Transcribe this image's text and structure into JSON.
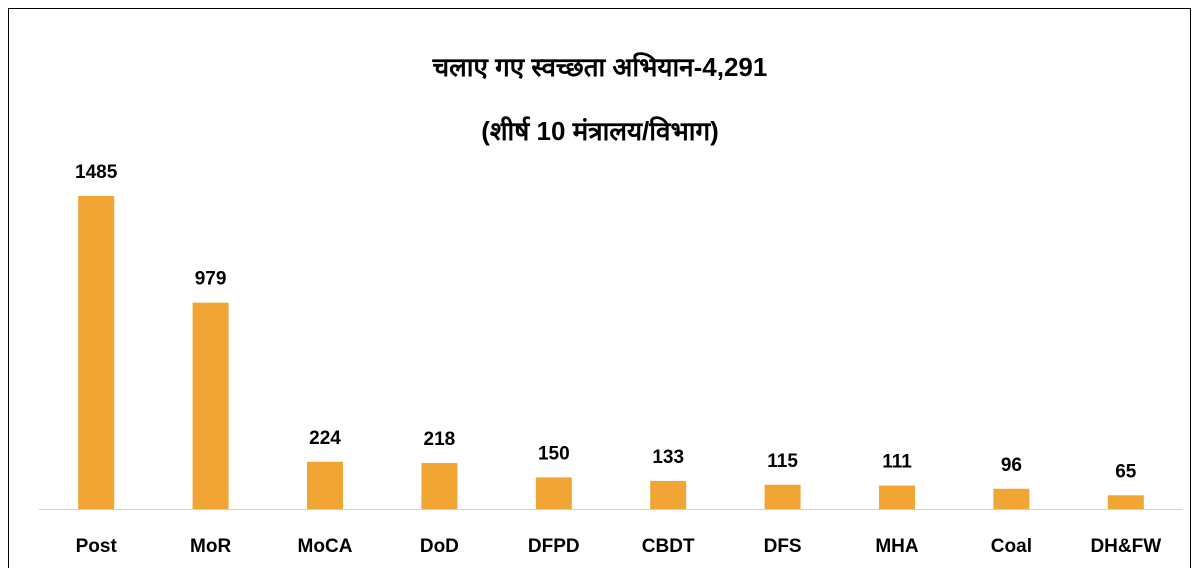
{
  "chart_data": {
    "type": "bar",
    "title": "चलाए गए स्वच्छता अभियान-4,291",
    "subtitle": "(शीर्ष 10 मंत्रालय/विभाग)",
    "categories": [
      "Post",
      "MoR",
      "MoCA",
      "DoD",
      "DFPD",
      "CBDT",
      "DFS",
      "MHA",
      "Coal",
      "DH&FW"
    ],
    "values": [
      1485,
      979,
      224,
      218,
      150,
      133,
      115,
      111,
      96,
      65
    ],
    "color": "#f0a535"
  }
}
